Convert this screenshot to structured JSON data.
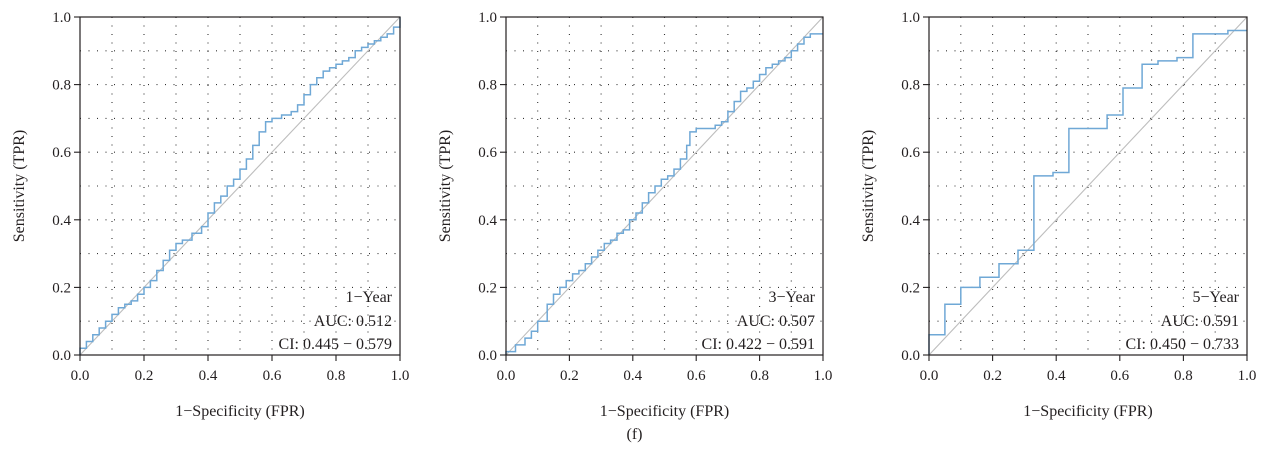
{
  "figure": {
    "panel_label": "(f)"
  },
  "chart_data": [
    {
      "type": "line",
      "xlabel": "1−Specificity (FPR)",
      "ylabel": "Sensitivity (TPR)",
      "xlim": [
        0,
        1
      ],
      "ylim": [
        0,
        1
      ],
      "xticks": [
        0.0,
        0.2,
        0.4,
        0.6,
        0.8,
        1.0
      ],
      "yticks": [
        0.0,
        0.2,
        0.4,
        0.6,
        0.8,
        1.0
      ],
      "xtick_labels": [
        "0.0",
        "0.2",
        "0.4",
        "0.6",
        "0.8",
        "1.0"
      ],
      "ytick_labels": [
        "0.0",
        "0.2",
        "0.4",
        "0.6",
        "0.8",
        "1.0"
      ],
      "grid": true,
      "diagonal_reference": true,
      "annotation": [
        "1−Year",
        "AUC: 0.512",
        "CI: 0.445 − 0.579"
      ],
      "colors": {
        "roc": "#6fa8d6",
        "diagonal": "#bdbdbd",
        "grid": "#333333"
      },
      "series": [
        {
          "x": [
            0.0,
            0.0,
            0.02,
            0.02,
            0.04,
            0.04,
            0.06,
            0.06,
            0.08,
            0.08,
            0.1,
            0.1,
            0.12,
            0.12,
            0.14,
            0.14,
            0.16,
            0.16,
            0.18,
            0.18,
            0.2,
            0.2,
            0.22,
            0.22,
            0.24,
            0.24,
            0.26,
            0.26,
            0.28,
            0.28,
            0.3,
            0.3,
            0.32,
            0.32,
            0.35,
            0.35,
            0.38,
            0.38,
            0.4,
            0.4,
            0.42,
            0.42,
            0.44,
            0.44,
            0.46,
            0.46,
            0.48,
            0.48,
            0.5,
            0.5,
            0.52,
            0.52,
            0.54,
            0.54,
            0.56,
            0.56,
            0.58,
            0.58,
            0.6,
            0.6,
            0.63,
            0.63,
            0.66,
            0.66,
            0.68,
            0.68,
            0.7,
            0.7,
            0.72,
            0.72,
            0.74,
            0.74,
            0.76,
            0.76,
            0.78,
            0.78,
            0.8,
            0.8,
            0.82,
            0.82,
            0.84,
            0.84,
            0.86,
            0.86,
            0.88,
            0.88,
            0.9,
            0.9,
            0.92,
            0.92,
            0.94,
            0.94,
            0.96,
            0.96,
            0.98,
            0.98,
            1.0,
            1.0
          ],
          "y": [
            0.0,
            0.02,
            0.02,
            0.04,
            0.04,
            0.06,
            0.06,
            0.08,
            0.08,
            0.1,
            0.1,
            0.12,
            0.12,
            0.14,
            0.14,
            0.15,
            0.15,
            0.16,
            0.16,
            0.18,
            0.18,
            0.2,
            0.2,
            0.22,
            0.22,
            0.25,
            0.25,
            0.28,
            0.28,
            0.31,
            0.31,
            0.33,
            0.33,
            0.34,
            0.34,
            0.36,
            0.36,
            0.38,
            0.38,
            0.42,
            0.42,
            0.45,
            0.45,
            0.47,
            0.47,
            0.5,
            0.5,
            0.52,
            0.52,
            0.55,
            0.55,
            0.58,
            0.58,
            0.62,
            0.62,
            0.66,
            0.66,
            0.69,
            0.69,
            0.7,
            0.7,
            0.71,
            0.71,
            0.72,
            0.72,
            0.74,
            0.74,
            0.77,
            0.77,
            0.8,
            0.8,
            0.82,
            0.82,
            0.84,
            0.84,
            0.85,
            0.85,
            0.86,
            0.86,
            0.87,
            0.87,
            0.88,
            0.88,
            0.9,
            0.9,
            0.91,
            0.91,
            0.92,
            0.92,
            0.93,
            0.93,
            0.94,
            0.94,
            0.95,
            0.95,
            0.97,
            0.97,
            1.0
          ]
        }
      ]
    },
    {
      "type": "line",
      "xlabel": "1−Specificity (FPR)",
      "ylabel": "Sensitivity (TPR)",
      "xlim": [
        0,
        1
      ],
      "ylim": [
        0,
        1
      ],
      "xticks": [
        0.0,
        0.2,
        0.4,
        0.6,
        0.8,
        1.0
      ],
      "yticks": [
        0.0,
        0.2,
        0.4,
        0.6,
        0.8,
        1.0
      ],
      "xtick_labels": [
        "0.0",
        "0.2",
        "0.4",
        "0.6",
        "0.8",
        "1.0"
      ],
      "ytick_labels": [
        "0.0",
        "0.2",
        "0.4",
        "0.6",
        "0.8",
        "1.0"
      ],
      "grid": true,
      "diagonal_reference": true,
      "annotation": [
        "3−Year",
        "AUC: 0.507",
        "CI: 0.422 − 0.591"
      ],
      "colors": {
        "roc": "#6fa8d6",
        "diagonal": "#bdbdbd",
        "grid": "#333333"
      },
      "series": [
        {
          "x": [
            0.0,
            0.0,
            0.03,
            0.03,
            0.06,
            0.06,
            0.08,
            0.08,
            0.1,
            0.1,
            0.13,
            0.13,
            0.15,
            0.15,
            0.17,
            0.17,
            0.19,
            0.19,
            0.21,
            0.21,
            0.23,
            0.23,
            0.25,
            0.25,
            0.27,
            0.27,
            0.29,
            0.29,
            0.31,
            0.31,
            0.33,
            0.33,
            0.35,
            0.35,
            0.37,
            0.37,
            0.39,
            0.39,
            0.41,
            0.41,
            0.43,
            0.43,
            0.45,
            0.45,
            0.47,
            0.47,
            0.49,
            0.49,
            0.51,
            0.51,
            0.53,
            0.53,
            0.55,
            0.55,
            0.57,
            0.57,
            0.58,
            0.58,
            0.6,
            0.6,
            0.66,
            0.66,
            0.68,
            0.68,
            0.7,
            0.7,
            0.72,
            0.72,
            0.74,
            0.74,
            0.76,
            0.76,
            0.78,
            0.78,
            0.8,
            0.8,
            0.82,
            0.82,
            0.84,
            0.84,
            0.86,
            0.86,
            0.88,
            0.88,
            0.9,
            0.9,
            0.92,
            0.92,
            0.94,
            0.94,
            0.96,
            0.96,
            1.0,
            1.0
          ],
          "y": [
            0.0,
            0.01,
            0.01,
            0.03,
            0.03,
            0.05,
            0.05,
            0.07,
            0.07,
            0.1,
            0.1,
            0.15,
            0.15,
            0.18,
            0.18,
            0.2,
            0.2,
            0.22,
            0.22,
            0.24,
            0.24,
            0.25,
            0.25,
            0.27,
            0.27,
            0.29,
            0.29,
            0.31,
            0.31,
            0.33,
            0.33,
            0.34,
            0.34,
            0.36,
            0.36,
            0.37,
            0.37,
            0.4,
            0.4,
            0.42,
            0.42,
            0.45,
            0.45,
            0.48,
            0.48,
            0.5,
            0.5,
            0.52,
            0.52,
            0.53,
            0.53,
            0.55,
            0.55,
            0.58,
            0.58,
            0.62,
            0.62,
            0.66,
            0.66,
            0.67,
            0.67,
            0.68,
            0.68,
            0.69,
            0.69,
            0.72,
            0.72,
            0.75,
            0.75,
            0.78,
            0.78,
            0.79,
            0.79,
            0.81,
            0.81,
            0.83,
            0.83,
            0.85,
            0.85,
            0.86,
            0.86,
            0.87,
            0.87,
            0.88,
            0.88,
            0.9,
            0.9,
            0.92,
            0.92,
            0.94,
            0.94,
            0.95,
            0.95,
            0.95
          ]
        }
      ]
    },
    {
      "type": "line",
      "xlabel": "1−Specificity (FPR)",
      "ylabel": "Sensitivity (TPR)",
      "xlim": [
        0,
        1
      ],
      "ylim": [
        0,
        1
      ],
      "xticks": [
        0.0,
        0.2,
        0.4,
        0.6,
        0.8,
        1.0
      ],
      "yticks": [
        0.0,
        0.2,
        0.4,
        0.6,
        0.8,
        1.0
      ],
      "xtick_labels": [
        "0.0",
        "0.2",
        "0.4",
        "0.6",
        "0.8",
        "1.0"
      ],
      "ytick_labels": [
        "0.0",
        "0.2",
        "0.4",
        "0.6",
        "0.8",
        "1.0"
      ],
      "grid": true,
      "diagonal_reference": true,
      "annotation": [
        "5−Year",
        "AUC: 0.591",
        "CI: 0.450 − 0.733"
      ],
      "colors": {
        "roc": "#6fa8d6",
        "diagonal": "#bdbdbd",
        "grid": "#333333"
      },
      "series": [
        {
          "x": [
            0.0,
            0.0,
            0.05,
            0.05,
            0.1,
            0.1,
            0.16,
            0.16,
            0.22,
            0.22,
            0.28,
            0.28,
            0.33,
            0.33,
            0.39,
            0.39,
            0.44,
            0.44,
            0.5,
            0.5,
            0.56,
            0.56,
            0.61,
            0.61,
            0.67,
            0.67,
            0.72,
            0.72,
            0.78,
            0.78,
            0.83,
            0.83,
            0.89,
            0.89,
            0.94,
            0.94,
            1.0
          ],
          "y": [
            0.0,
            0.06,
            0.06,
            0.15,
            0.15,
            0.2,
            0.2,
            0.23,
            0.23,
            0.27,
            0.27,
            0.31,
            0.31,
            0.53,
            0.53,
            0.54,
            0.54,
            0.67,
            0.67,
            0.67,
            0.67,
            0.71,
            0.71,
            0.79,
            0.79,
            0.86,
            0.86,
            0.87,
            0.87,
            0.88,
            0.88,
            0.95,
            0.95,
            0.95,
            0.95,
            0.96,
            0.96
          ]
        }
      ]
    }
  ]
}
